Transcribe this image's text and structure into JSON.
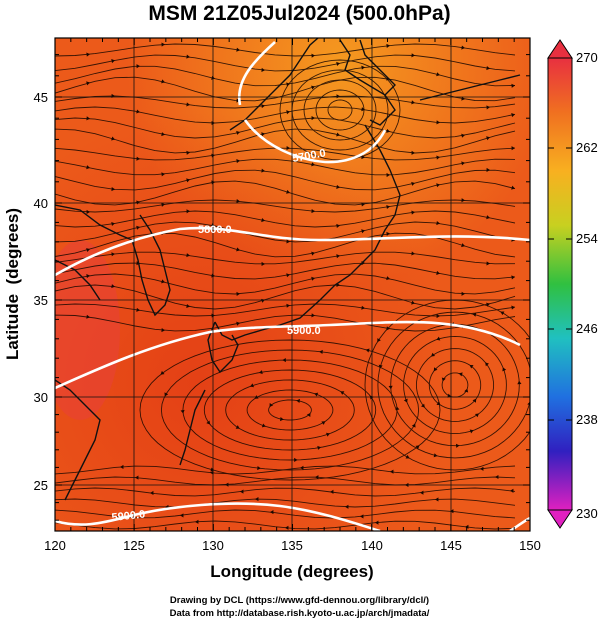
{
  "title": "MSM 21Z05Jul2024 (500.0hPa)",
  "credits": {
    "line1": "Drawing by DCL (https://www.gfd-dennou.org/library/dcl/)",
    "line2": "Data from http://database.rish.kyoto-u.ac.jp/arch/jmadata/"
  },
  "chart_data": {
    "type": "heatmap",
    "title": "MSM 21Z05Jul2024 (500.0hPa)",
    "xlabel": "Longitude (degrees)",
    "ylabel": "Latitude  (degrees)",
    "xlim": [
      120,
      150
    ],
    "ylim": [
      22.4,
      47.6
    ],
    "x_ticks": [
      "120",
      "125",
      "130",
      "135",
      "140",
      "145",
      "150"
    ],
    "y_ticks": [
      "25",
      "30",
      "35",
      "40",
      "45"
    ],
    "colorbar": {
      "range": [
        230,
        270
      ],
      "tick_labels": [
        "270",
        "262",
        "254",
        "246",
        "238",
        "230"
      ],
      "colors": [
        "#e03040",
        "#f07020",
        "#f8b020",
        "#d8d020",
        "#40c030",
        "#20c0b0",
        "#2080e0",
        "#2020c0",
        "#8020c0",
        "#e020c0"
      ]
    },
    "contours": [
      {
        "label": "5700.0",
        "label_lon": 137.2,
        "label_lat": 41.5
      },
      {
        "label": "5800.0",
        "label_lon": 132.5,
        "label_lat": 38.8
      },
      {
        "label": "5900.0",
        "label_lon": 137.5,
        "label_lat": 33.8
      },
      {
        "label": "5900.0",
        "label_lon": 126.8,
        "label_lat": 23.8
      }
    ],
    "field_colors": {
      "warm": "#e84a18",
      "mid": "#ee6a1a",
      "cool": "#f4901e"
    }
  }
}
